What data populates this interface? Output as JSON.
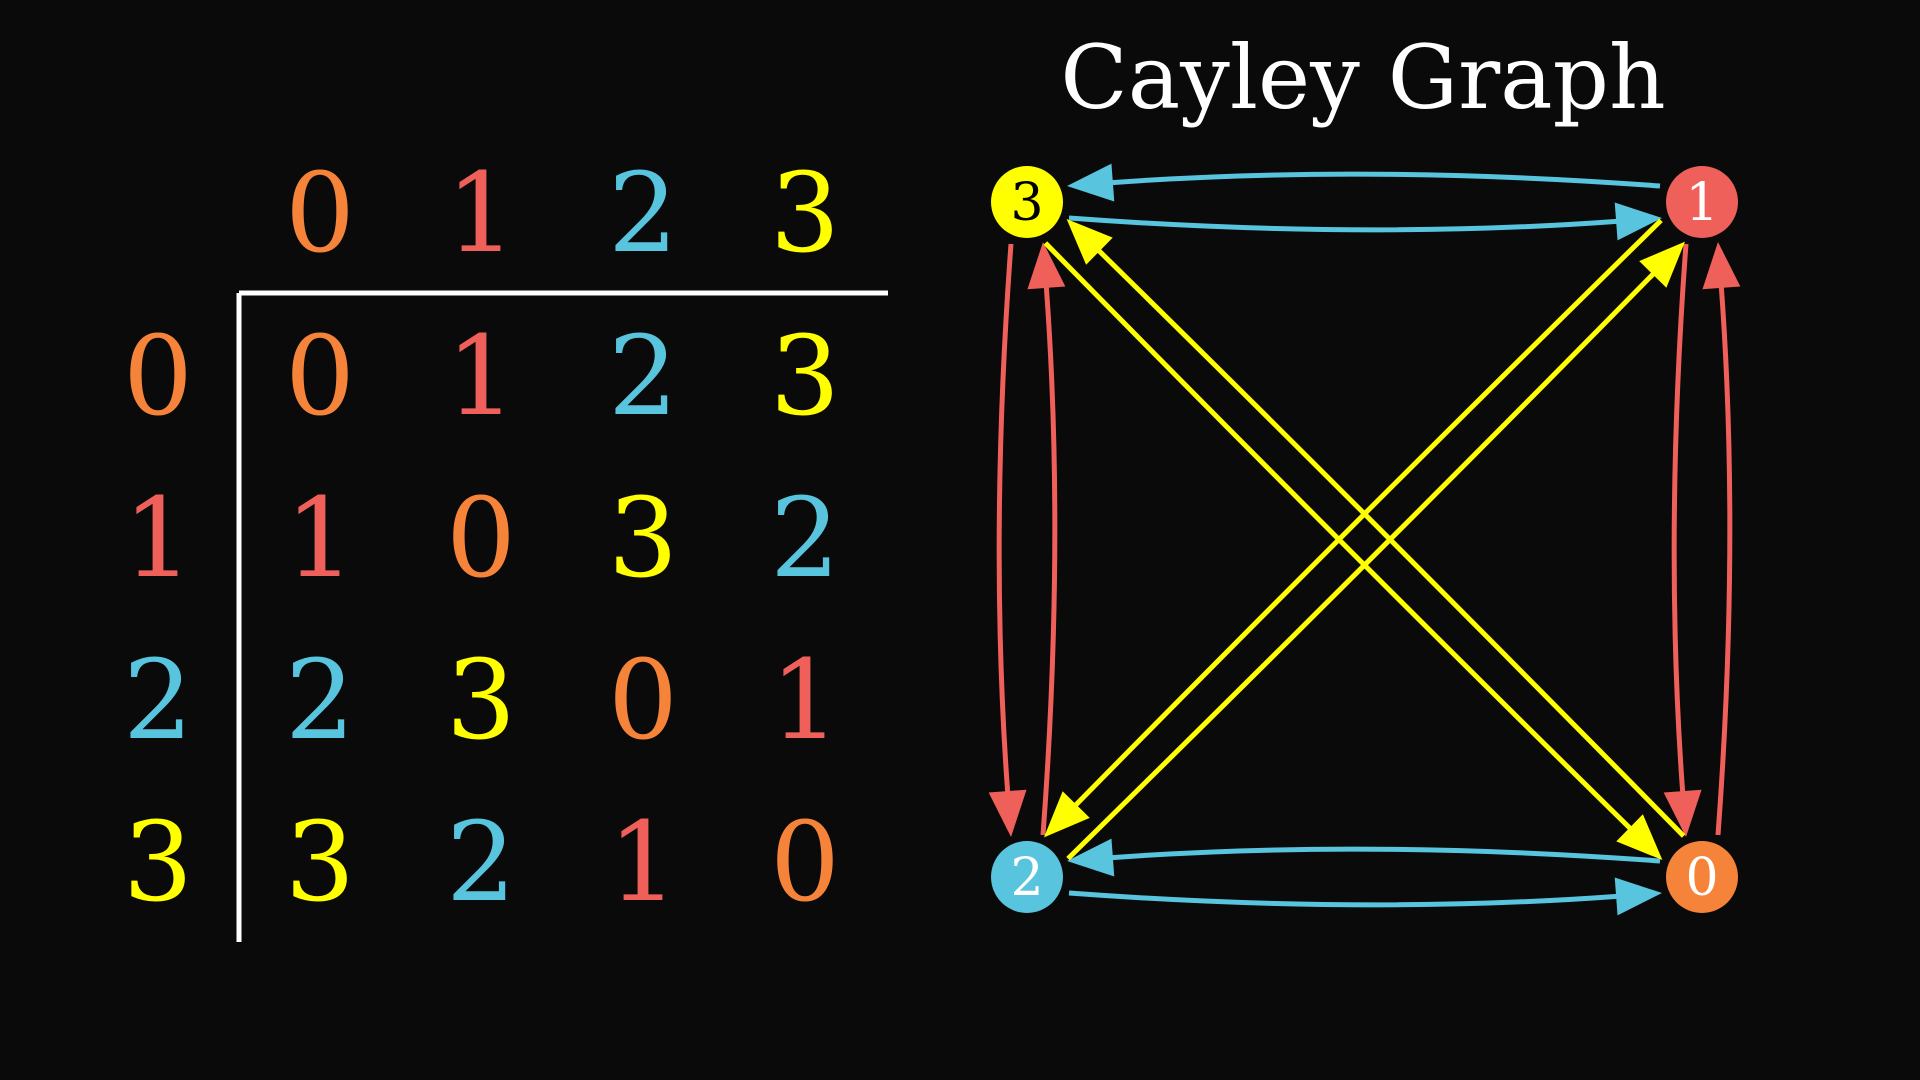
{
  "title": "Cayley Graph",
  "colors": {
    "background": "#0a0a0a",
    "line": "#ffffff",
    "element_0": "#f5843a",
    "element_1": "#f0605a",
    "element_2": "#58c4dd",
    "element_3": "#ffff00"
  },
  "table": {
    "column_headers": [
      "0",
      "1",
      "2",
      "3"
    ],
    "row_headers": [
      "0",
      "1",
      "2",
      "3"
    ],
    "cells": [
      [
        "0",
        "1",
        "2",
        "3"
      ],
      [
        "1",
        "0",
        "3",
        "2"
      ],
      [
        "2",
        "3",
        "0",
        "1"
      ],
      [
        "3",
        "2",
        "1",
        "0"
      ]
    ]
  },
  "graph": {
    "nodes": [
      {
        "id": "0",
        "label": "0"
      },
      {
        "id": "1",
        "label": "1"
      },
      {
        "id": "2",
        "label": "2"
      },
      {
        "id": "3",
        "label": "3"
      }
    ],
    "edges": [
      {
        "from": "1",
        "to": "3",
        "generator": "2"
      },
      {
        "from": "3",
        "to": "1",
        "generator": "2"
      },
      {
        "from": "0",
        "to": "2",
        "generator": "2"
      },
      {
        "from": "2",
        "to": "0",
        "generator": "2"
      },
      {
        "from": "3",
        "to": "2",
        "generator": "1"
      },
      {
        "from": "2",
        "to": "3",
        "generator": "1"
      },
      {
        "from": "1",
        "to": "0",
        "generator": "1"
      },
      {
        "from": "0",
        "to": "1",
        "generator": "1"
      },
      {
        "from": "3",
        "to": "0",
        "generator": "3"
      },
      {
        "from": "0",
        "to": "3",
        "generator": "3"
      },
      {
        "from": "1",
        "to": "2",
        "generator": "3"
      },
      {
        "from": "2",
        "to": "1",
        "generator": "3"
      }
    ]
  }
}
